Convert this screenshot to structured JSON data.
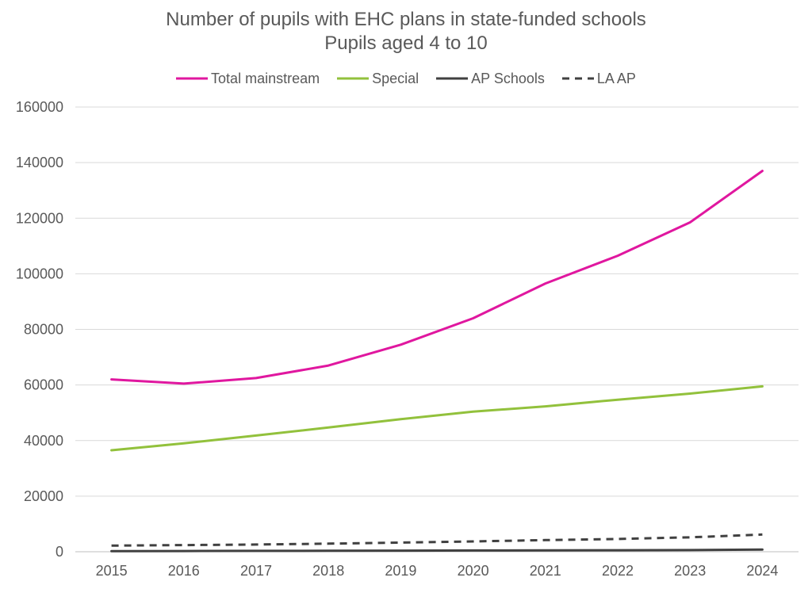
{
  "chart_data": {
    "type": "line",
    "title": "Number of pupils with EHC plans in state-funded schools",
    "subtitle": "Pupils aged 4 to 10",
    "xlabel": "",
    "ylabel": "",
    "x": [
      "2015",
      "2016",
      "2017",
      "2018",
      "2019",
      "2020",
      "2021",
      "2022",
      "2023",
      "2024"
    ],
    "ylim": [
      0,
      160000
    ],
    "yticks": [
      0,
      20000,
      40000,
      60000,
      80000,
      100000,
      120000,
      140000,
      160000
    ],
    "grid": true,
    "legend_position": "top",
    "series": [
      {
        "name": "Total mainstream",
        "color": "#E0179F",
        "style": "solid",
        "values": [
          62000,
          60500,
          62500,
          67000,
          74500,
          84000,
          96500,
          106500,
          118500,
          137000
        ]
      },
      {
        "name": "Special",
        "color": "#92C13C",
        "style": "solid",
        "values": [
          36500,
          39000,
          41800,
          44700,
          47700,
          50400,
          52300,
          54700,
          56900,
          59500
        ]
      },
      {
        "name": "AP Schools",
        "color": "#404040",
        "style": "solid",
        "values": [
          200,
          250,
          300,
          350,
          400,
          450,
          500,
          550,
          600,
          800
        ]
      },
      {
        "name": "LA AP",
        "color": "#404040",
        "style": "dashed",
        "values": [
          2200,
          2400,
          2600,
          2900,
          3300,
          3700,
          4200,
          4600,
          5200,
          6200
        ]
      }
    ]
  }
}
